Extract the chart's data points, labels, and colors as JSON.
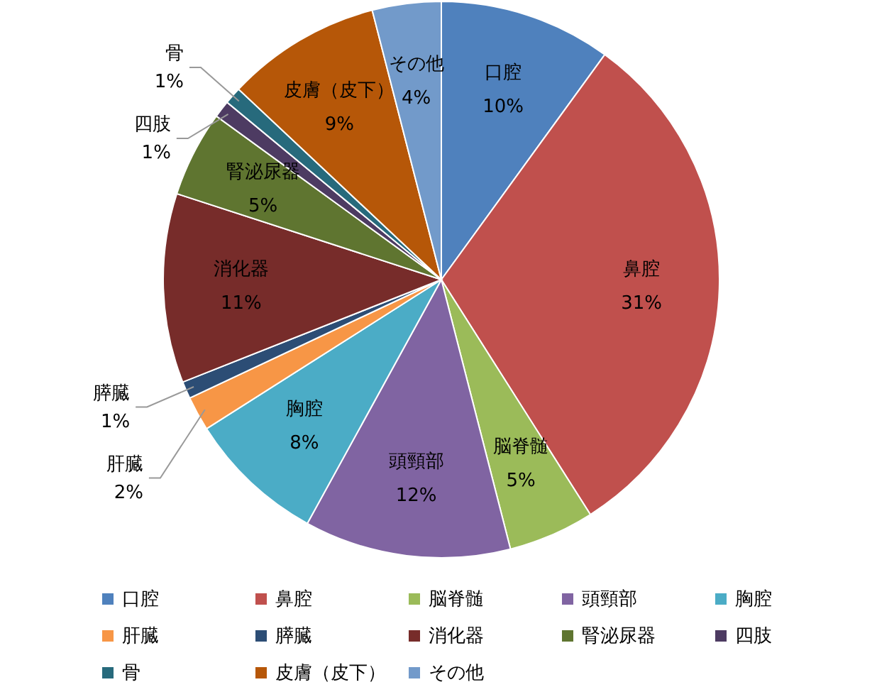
{
  "chart_data": {
    "type": "pie",
    "categories": [
      "口腔",
      "鼻腔",
      "脳脊髄",
      "頭頸部",
      "胸腔",
      "肝臓",
      "膵臓",
      "消化器",
      "腎泌尿器",
      "四肢",
      "骨",
      "皮膚（皮下）",
      "その他"
    ],
    "values": [
      10,
      31,
      5,
      12,
      8,
      2,
      1,
      11,
      5,
      1,
      1,
      9,
      4
    ],
    "value_labels": [
      "10%",
      "31%",
      "5%",
      "12%",
      "8%",
      "2%",
      "1%",
      "11%",
      "5%",
      "1%",
      "1%",
      "9%",
      "4%"
    ],
    "colors": [
      "#4f81bd",
      "#c0504d",
      "#9bbb59",
      "#8064a2",
      "#4bacc6",
      "#f79646",
      "#2c4d75",
      "#772c2a",
      "#5f7530",
      "#4d3b62",
      "#276a7c",
      "#b65708",
      "#729aca"
    ],
    "legend": "bottom"
  }
}
